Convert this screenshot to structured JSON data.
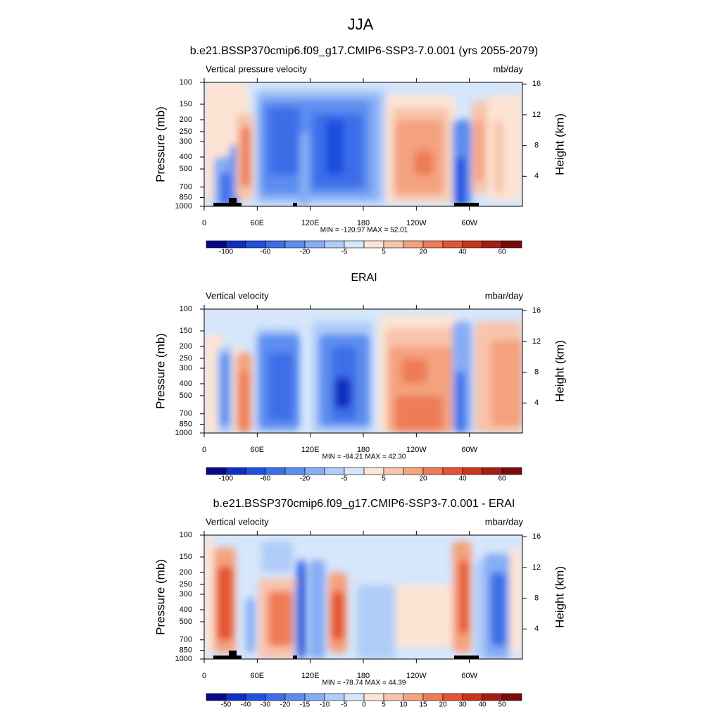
{
  "title": "JJA",
  "chart_data": [
    {
      "type": "contour",
      "title": "b.e21.BSSP370cmip6.f09_g17.CMIP6-SSP3-7.0.001 (yrs 2055-2079)",
      "left_label": "Vertical pressure velocity",
      "right_label": "mb/day",
      "y_label": "Pressure (mb)",
      "y2_label": "Height (km)",
      "xlim": [
        0,
        360
      ],
      "xticks": [
        0,
        {
          "value": 60,
          "label": "60E"
        },
        {
          "value": 120,
          "label": "120E"
        },
        180,
        {
          "value": 240,
          "label": "120W"
        },
        {
          "value": 300,
          "label": "60W"
        }
      ],
      "ylim": [
        1000,
        100
      ],
      "log_y": true,
      "yticks": [
        100,
        150,
        200,
        250,
        300,
        400,
        500,
        700,
        850,
        1000
      ],
      "y2ticks": [
        4,
        8,
        12,
        16
      ],
      "stats": "MIN = -120.97  MAX =  52.01",
      "colorbar": {
        "colors": [
          "#08088a",
          "#0f2fc0",
          "#1f50e0",
          "#3c6ee8",
          "#5c8ef0",
          "#86adf5",
          "#b0ccf8",
          "#d6e6fb",
          "#fde4d4",
          "#f8c4ab",
          "#f4a27f",
          "#ee7b56",
          "#e55430",
          "#c9341c",
          "#a51c12",
          "#7d0a0a"
        ],
        "labels": [
          -100,
          -60,
          -20,
          -5,
          5,
          20,
          40,
          60
        ]
      }
    },
    {
      "type": "contour",
      "title": "ERAI",
      "left_label": "Vertical velocity",
      "right_label": "mbar/day",
      "y_label": "Pressure (mb)",
      "y2_label": "Height (km)",
      "xlim": [
        0,
        360
      ],
      "xticks": [
        0,
        {
          "value": 60,
          "label": "60E"
        },
        {
          "value": 120,
          "label": "120E"
        },
        180,
        {
          "value": 240,
          "label": "120W"
        },
        {
          "value": 300,
          "label": "60W"
        }
      ],
      "ylim": [
        1000,
        100
      ],
      "log_y": true,
      "yticks": [
        100,
        150,
        200,
        250,
        300,
        400,
        500,
        700,
        850,
        1000
      ],
      "y2ticks": [
        4,
        8,
        12,
        16
      ],
      "stats": "MIN = -84.21  MAX =  42.30",
      "colorbar": {
        "colors": [
          "#08088a",
          "#0f2fc0",
          "#1f50e0",
          "#3c6ee8",
          "#5c8ef0",
          "#86adf5",
          "#b0ccf8",
          "#d6e6fb",
          "#fde4d4",
          "#f8c4ab",
          "#f4a27f",
          "#ee7b56",
          "#e55430",
          "#c9341c",
          "#a51c12",
          "#7d0a0a"
        ],
        "labels": [
          -100,
          -60,
          -20,
          -5,
          5,
          20,
          40,
          60
        ]
      }
    },
    {
      "type": "contour",
      "title": "b.e21.BSSP370cmip6.f09_g17.CMIP6-SSP3-7.0.001 - ERAI",
      "left_label": "Vertical velocity",
      "right_label": "mbar/day",
      "y_label": "Pressure (mb)",
      "y2_label": "Height (km)",
      "xlim": [
        0,
        360
      ],
      "xticks": [
        0,
        {
          "value": 60,
          "label": "60E"
        },
        {
          "value": 120,
          "label": "120E"
        },
        180,
        {
          "value": 240,
          "label": "120W"
        },
        {
          "value": 300,
          "label": "60W"
        }
      ],
      "ylim": [
        1000,
        100
      ],
      "log_y": true,
      "yticks": [
        100,
        150,
        200,
        250,
        300,
        400,
        500,
        700,
        850,
        1000
      ],
      "y2ticks": [
        4,
        8,
        12,
        16
      ],
      "stats": "MIN = -78.74  MAX =  44.39",
      "colorbar": {
        "colors": [
          "#08088a",
          "#0f2fc0",
          "#1f50e0",
          "#3c6ee8",
          "#5c8ef0",
          "#86adf5",
          "#b0ccf8",
          "#d6e6fb",
          "#fde4d4",
          "#f8c4ab",
          "#f4a27f",
          "#ee7b56",
          "#e55430",
          "#c9341c",
          "#a51c12",
          "#7d0a0a"
        ],
        "labels": [
          -50,
          -40,
          -30,
          -20,
          -15,
          -10,
          -5,
          0,
          5,
          10,
          15,
          20,
          30,
          40,
          50
        ]
      }
    }
  ]
}
